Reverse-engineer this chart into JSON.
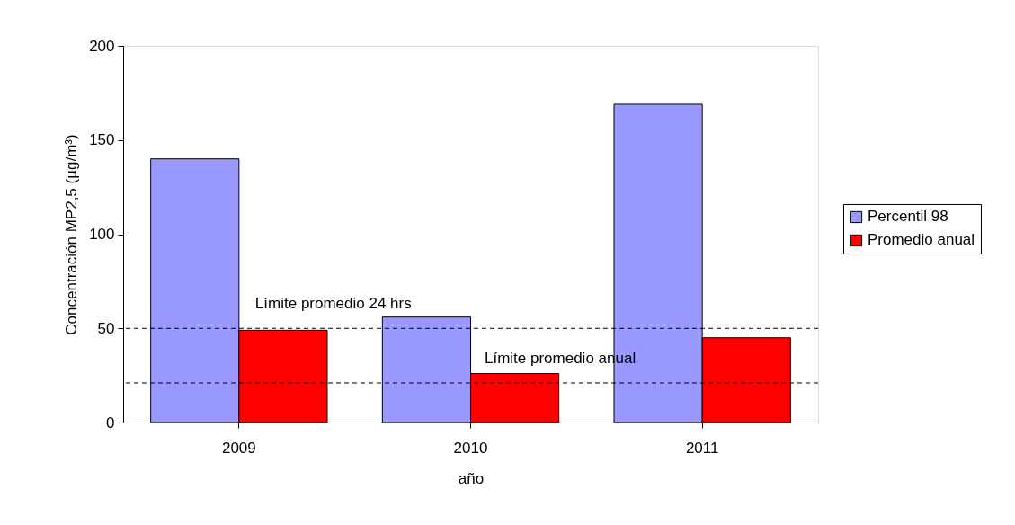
{
  "chart_data": {
    "type": "bar",
    "xlabel": "año",
    "ylabel": "Concentración MP2,5 (µg/m³)",
    "categories": [
      "2009",
      "2010",
      "2011"
    ],
    "series": [
      {
        "name": "Percentil 98",
        "color": "#9999ff",
        "values": [
          140,
          56,
          169
        ]
      },
      {
        "name": "Promedio anual",
        "color": "#ff0000",
        "values": [
          49,
          26,
          45
        ]
      }
    ],
    "ylim": [
      0,
      200
    ],
    "yticks": [
      0,
      50,
      100,
      150,
      200
    ],
    "grid": false,
    "legend": "right",
    "ref_lines": [
      {
        "axis": "y",
        "value": 50,
        "label": "Límite promedio 24 hrs",
        "color": "#000000",
        "line_style": "dashed"
      },
      {
        "axis": "y",
        "value": 21,
        "label": "Límite promedio anual",
        "color": "#000000",
        "line_style": "dashed"
      }
    ]
  }
}
